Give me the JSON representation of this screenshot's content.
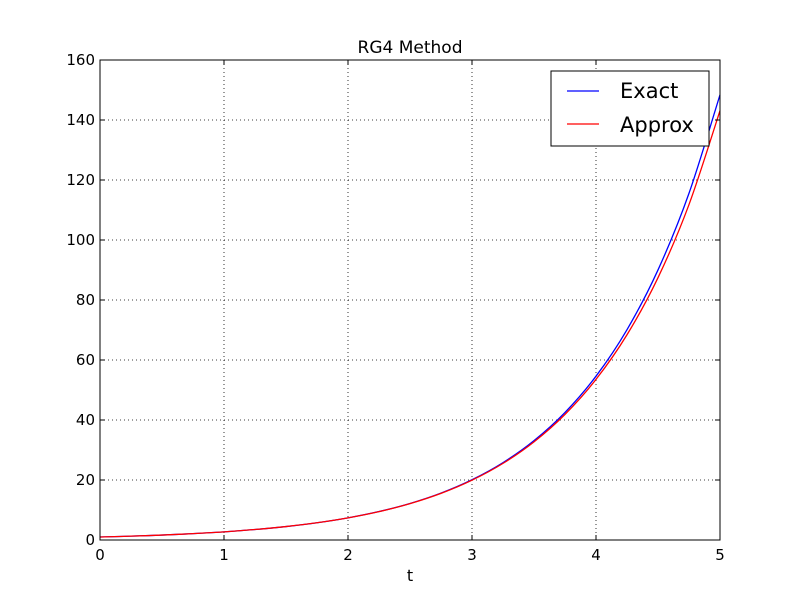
{
  "chart_data": {
    "type": "line",
    "title": "RG4 Method",
    "xlabel": "t",
    "ylabel": "",
    "xlim": [
      0,
      5
    ],
    "ylim": [
      0,
      160
    ],
    "xticks": [
      0,
      1,
      2,
      3,
      4,
      5
    ],
    "yticks": [
      0,
      20,
      40,
      60,
      80,
      100,
      120,
      140,
      160
    ],
    "xtick_labels": [
      "0",
      "1",
      "2",
      "3",
      "4",
      "5"
    ],
    "ytick_labels": [
      "0",
      "20",
      "40",
      "60",
      "80",
      "100",
      "120",
      "140",
      "160"
    ],
    "grid": true,
    "grid_style": "dotted",
    "legend_position": "top-right",
    "x": [
      0,
      0.25,
      0.5,
      0.75,
      1,
      1.25,
      1.5,
      1.75,
      2,
      2.25,
      2.5,
      2.75,
      3,
      3.25,
      3.5,
      3.75,
      4,
      4.25,
      4.5,
      4.75,
      5
    ],
    "series": [
      {
        "name": "Exact",
        "color": "#0000ff",
        "values": [
          1.0,
          1.28,
          1.65,
          2.12,
          2.72,
          3.49,
          4.48,
          5.75,
          7.39,
          9.49,
          12.18,
          15.64,
          20.09,
          25.79,
          33.12,
          42.52,
          54.6,
          70.11,
          90.02,
          115.58,
          148.41
        ]
      },
      {
        "name": "Approx",
        "color": "#ff0000",
        "values": [
          1.0,
          1.28,
          1.65,
          2.12,
          2.72,
          3.49,
          4.48,
          5.74,
          7.37,
          9.45,
          12.12,
          15.54,
          19.93,
          25.54,
          32.72,
          41.87,
          53.53,
          68.41,
          87.43,
          111.81,
          143.1
        ]
      }
    ]
  }
}
